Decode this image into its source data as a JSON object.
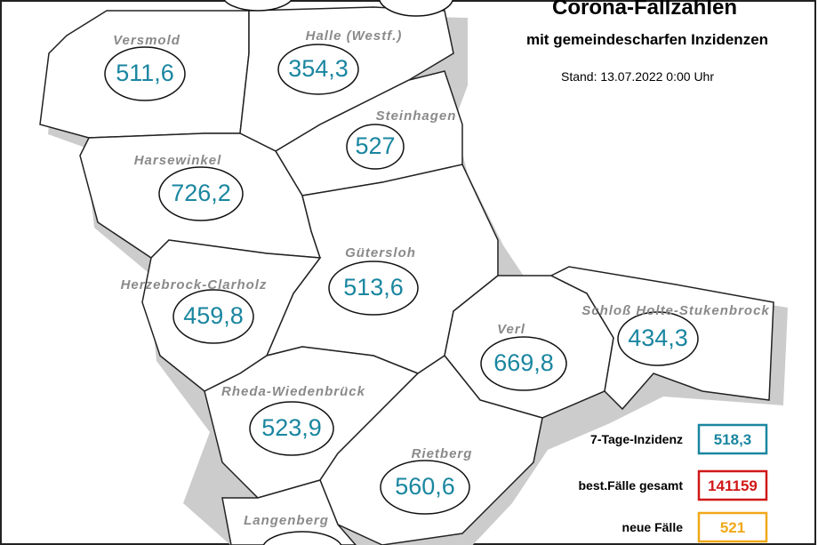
{
  "header": {
    "title": "Corona-Fallzahlen",
    "subtitle": "mit gemeindescharfen Inzidenzen",
    "stand": "Stand: 13.07.2022 0:00 Uhr"
  },
  "regions": [
    {
      "name": "Versmold",
      "value": "511,6"
    },
    {
      "name": "Halle (Westf.)",
      "value": "354,3"
    },
    {
      "name": "Steinhagen",
      "value": "527"
    },
    {
      "name": "Harsewinkel",
      "value": "726,2"
    },
    {
      "name": "Gütersloh",
      "value": "513,6"
    },
    {
      "name": "Herzebrock-Clarholz",
      "value": "459,8"
    },
    {
      "name": "Verl",
      "value": "669,8"
    },
    {
      "name": "Schloß Holte-Stukenbrock",
      "value": "434,3"
    },
    {
      "name": "Rheda-Wiedenbrück",
      "value": "523,9"
    },
    {
      "name": "Rietberg",
      "value": "560,6"
    },
    {
      "name": "Langenberg"
    }
  ],
  "legend": [
    {
      "label": "7-Tage-Inzidenz",
      "value": "518,3"
    },
    {
      "label": "best.Fälle gesamt",
      "value": "141159"
    },
    {
      "label": "neue Fälle",
      "value": "521"
    }
  ]
}
